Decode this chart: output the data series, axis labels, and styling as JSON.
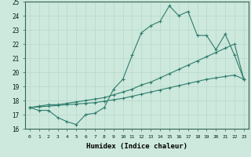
{
  "xlabel": "Humidex (Indice chaleur)",
  "ylabel": "",
  "xlim": [
    -0.5,
    23.5
  ],
  "ylim": [
    16,
    25
  ],
  "yticks": [
    16,
    17,
    18,
    19,
    20,
    21,
    22,
    23,
    24,
    25
  ],
  "xticks": [
    0,
    1,
    2,
    3,
    4,
    5,
    6,
    7,
    8,
    9,
    10,
    11,
    12,
    13,
    14,
    15,
    16,
    17,
    18,
    19,
    20,
    21,
    22,
    23
  ],
  "bg_color": "#cde8dc",
  "line_color": "#2e7d6e",
  "grid_color": "#b8d8cc",
  "series1": [
    17.5,
    17.3,
    17.3,
    16.8,
    16.5,
    16.3,
    17.0,
    17.1,
    17.5,
    18.8,
    19.5,
    21.2,
    22.8,
    23.3,
    23.6,
    24.7,
    24.0,
    24.3,
    22.6,
    22.6,
    21.6,
    22.7,
    21.2,
    19.5
  ],
  "series2": [
    17.5,
    17.6,
    17.7,
    17.7,
    17.8,
    17.9,
    18.0,
    18.1,
    18.2,
    18.4,
    18.6,
    18.8,
    19.1,
    19.3,
    19.6,
    19.9,
    20.2,
    20.5,
    20.8,
    21.1,
    21.4,
    21.7,
    22.0,
    19.5
  ],
  "series3": [
    17.5,
    17.55,
    17.6,
    17.65,
    17.7,
    17.75,
    17.8,
    17.85,
    17.95,
    18.05,
    18.15,
    18.3,
    18.45,
    18.6,
    18.75,
    18.9,
    19.05,
    19.2,
    19.35,
    19.5,
    19.6,
    19.7,
    19.8,
    19.5
  ]
}
